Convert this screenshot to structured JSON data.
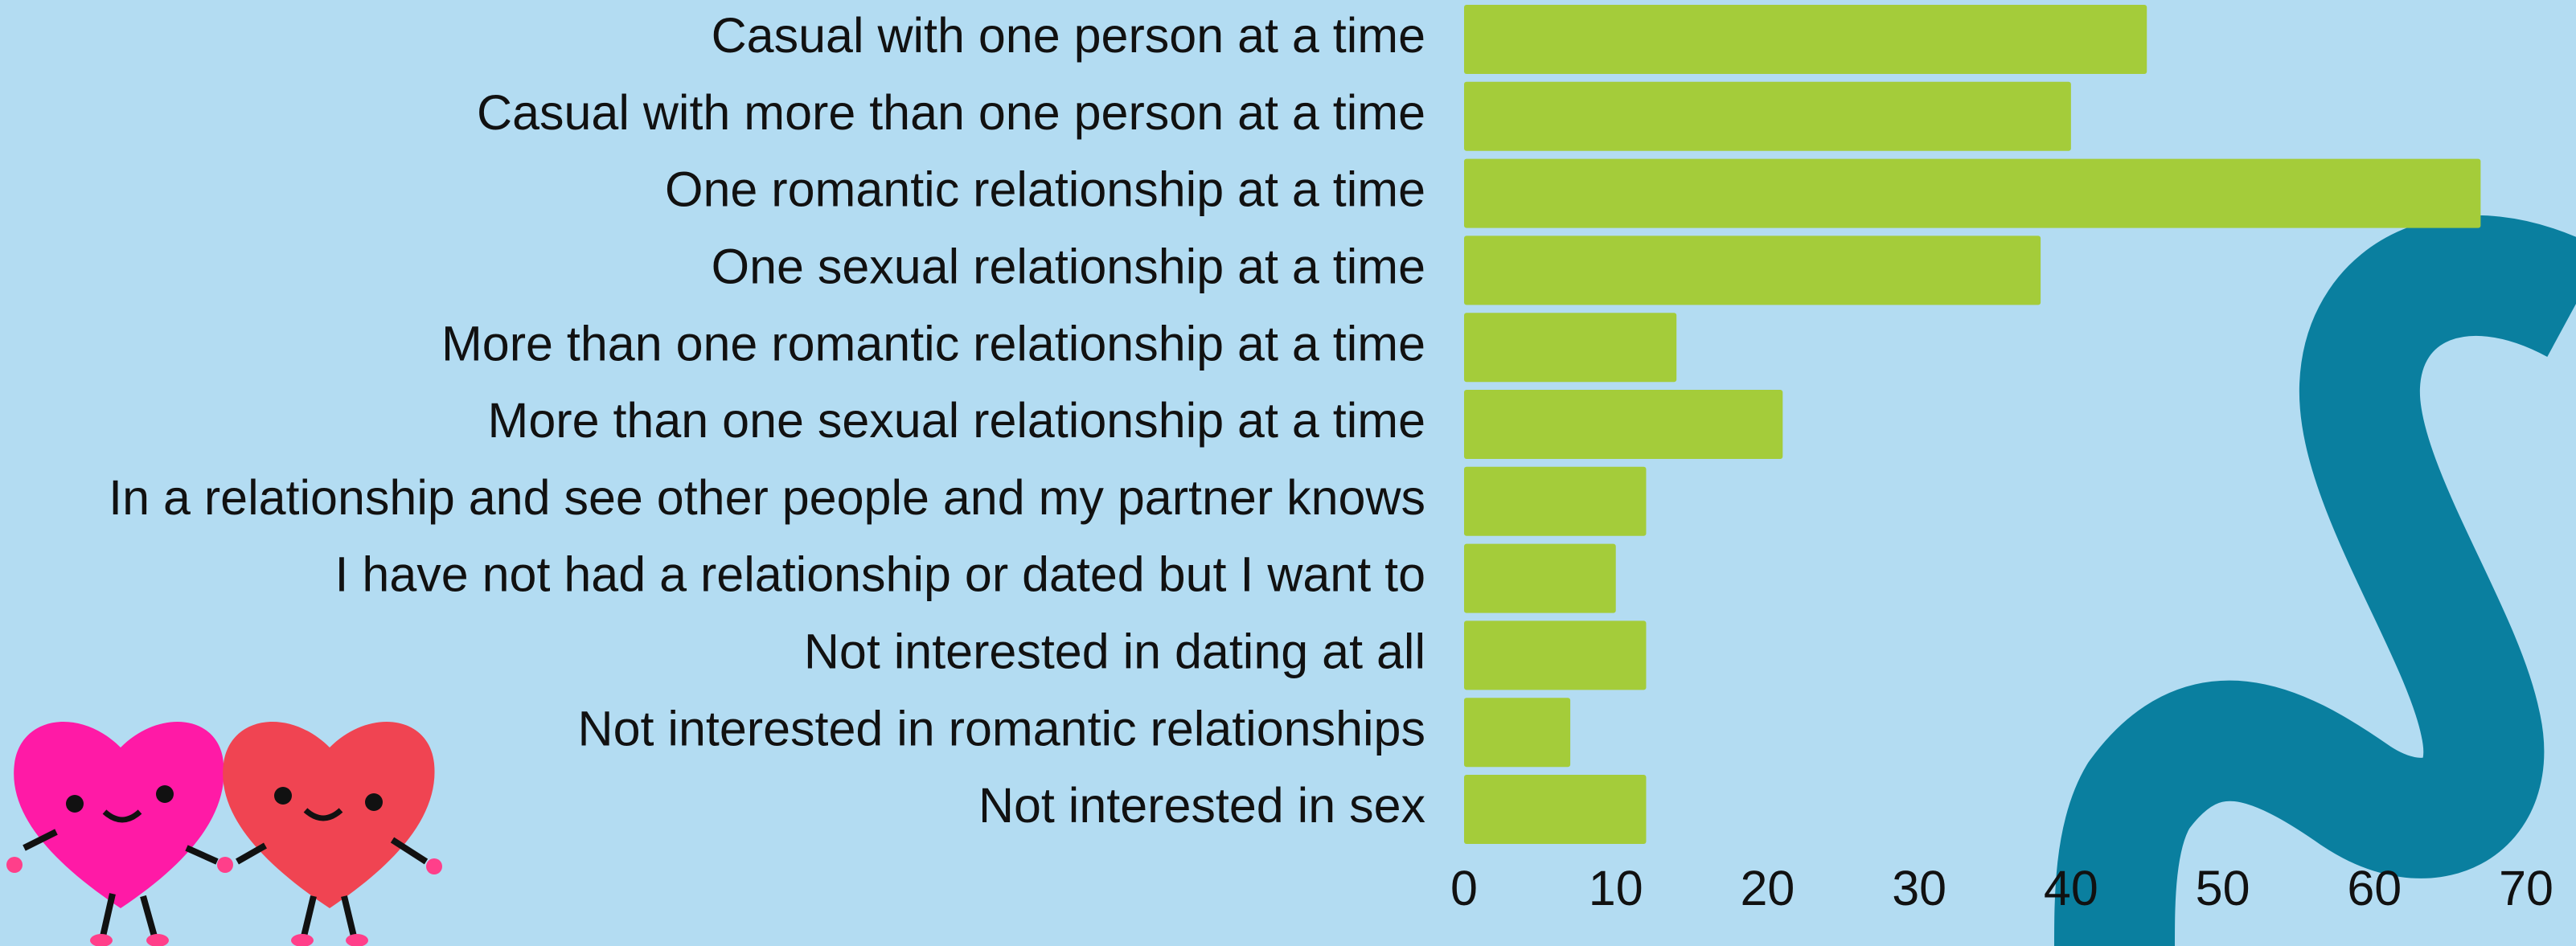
{
  "chart_data": {
    "type": "bar",
    "orientation": "horizontal",
    "categories": [
      "Casual with one person at a time",
      "Casual with more than one person at a time",
      "One romantic relationship at a time",
      "One sexual relationship at a time",
      "More than one romantic relationship at a time",
      "More than one sexual relationship at a time",
      "In a relationship and see other people and my partner knows",
      "I have not had a relationship or dated but I want to",
      "Not interested in dating at all",
      "Not interested in romantic relationships",
      "Not interested in sex"
    ],
    "values": [
      45,
      40,
      67,
      38,
      14,
      21,
      12,
      10,
      12,
      7,
      12
    ],
    "color": "#a4cc3a",
    "xlim": [
      0,
      70
    ],
    "xticks": [
      0,
      10,
      20,
      30,
      40,
      50,
      60,
      70
    ],
    "grid": false
  }
}
